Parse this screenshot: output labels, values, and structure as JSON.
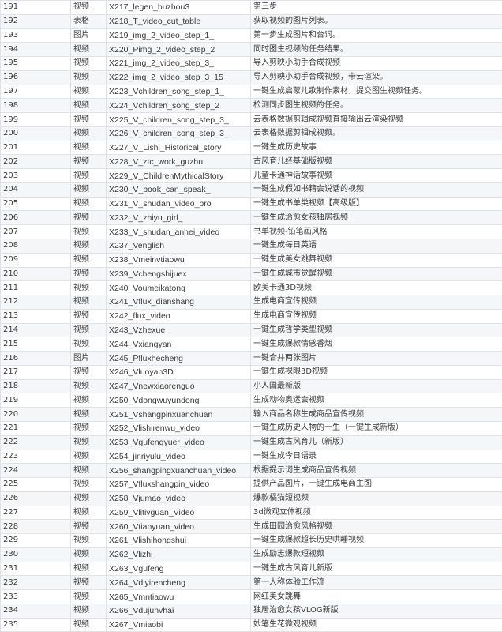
{
  "rows": [
    [
      "191",
      "视频",
      "X217_legen_buzhou3",
      "第三步"
    ],
    [
      "192",
      "表格",
      "X218_T_video_cut_table",
      "获取视频的图片列表。"
    ],
    [
      "193",
      "图片",
      "X219_img_2_video_step_1_",
      "第一步生成图片和台词。"
    ],
    [
      "194",
      "视频",
      "X220_Pimg_2_video_step_2",
      "同时图生视频的任务结果。"
    ],
    [
      "195",
      "视频",
      "X221_img_2_video_step_3_",
      "导入剪映小助手合成视频"
    ],
    [
      "196",
      "视频",
      "X222_img_2_video_step_3_15",
      "导入剪映小助手合成视频，带云渲染。"
    ],
    [
      "197",
      "视频",
      "X223_Vchildren_song_step_1_",
      "一键生成启蒙儿歌制作素材，提交图生视频任务。"
    ],
    [
      "198",
      "视频",
      "X224_Vchildren_song_step_2",
      "检测同步图生视频的任务。"
    ],
    [
      "199",
      "视频",
      "X225_V_children_song_step_3_",
      "云表格数据剪辑成视频直接输出云渲染视频"
    ],
    [
      "200",
      "视频",
      "X226_V_children_song_step_3_",
      "云表格数据剪辑成视频。"
    ],
    [
      "201",
      "视频",
      "X227_V_Lishi_Historical_story",
      "一键生成历史故事"
    ],
    [
      "202",
      "视频",
      "X228_V_ztc_work_guzhu",
      "古风育儿经基础版视频"
    ],
    [
      "203",
      "视频",
      "X229_V_ChildrenMythicalStory",
      "儿童卡通神话故事视频"
    ],
    [
      "204",
      "视频",
      "X230_V_book_can_speak_",
      "一键生成假如书籍会说话的视频"
    ],
    [
      "205",
      "视频",
      "X231_V_shudan_video_pro",
      "一键生成书单类视频【高级版】"
    ],
    [
      "206",
      "视频",
      "X232_V_zhiyu_girl_",
      "一键生成治愈女孩独居视频"
    ],
    [
      "207",
      "视频",
      "X233_V_shudan_anhei_video",
      "书单视频-铅笔画风格"
    ],
    [
      "208",
      "视频",
      "X237_Venglish",
      "一键生成每日英语"
    ],
    [
      "209",
      "视频",
      "X238_Vmeinvtiaowu",
      "一键生成美女跳舞视频"
    ],
    [
      "210",
      "视频",
      "X239_Vchengshijuex",
      "一键生成城市觉醒视频"
    ],
    [
      "211",
      "视频",
      "X240_Voumeikatong",
      "欧美卡通3D视频"
    ],
    [
      "212",
      "视频",
      "X241_Vflux_dianshang",
      "生成电商宣传视频"
    ],
    [
      "213",
      "视频",
      "X242_flux_video",
      "生成电商宣传视频"
    ],
    [
      "214",
      "视频",
      "X243_Vzhexue",
      "一键生成哲学类型视频"
    ],
    [
      "215",
      "视频",
      "X244_Vxiangyan",
      "一键生成爆款情感香烟"
    ],
    [
      "216",
      "图片",
      "X245_Pfluxhecheng",
      "一键合并两张图片"
    ],
    [
      "217",
      "视频",
      "X246_Vluoyan3D",
      "一键生成裸眼3D视频"
    ],
    [
      "218",
      "视频",
      "X247_Vnewxiaorenguo",
      "小人国最新版"
    ],
    [
      "219",
      "视频",
      "X250_Vdongwuyundong",
      "生成动物奥运会视频"
    ],
    [
      "220",
      "视频",
      "X251_Vshangpinxuanchuan",
      "输入商品名称生成商品宣传视频"
    ],
    [
      "221",
      "视频",
      "X252_Vlishirenwu_video",
      "一键生成历史人物的一生（一键生成新版）"
    ],
    [
      "222",
      "视频",
      "X253_Vgufengyuer_video",
      "一键生成古风育儿（新版）"
    ],
    [
      "223",
      "视频",
      "X254_jinriyulu_video",
      "一键生成今日语录"
    ],
    [
      "224",
      "视频",
      "X256_shangpingxuanchuan_video",
      "根据提示词生成商品宣传视频"
    ],
    [
      "225",
      "视频",
      "X257_Vfluxshangpin_video",
      "提供产品图片，一键生成电商主图"
    ],
    [
      "226",
      "视频",
      "X258_Vjumao_video",
      "爆款橘猫短视频"
    ],
    [
      "227",
      "视频",
      "X259_Vlitivguan_Video",
      "3d微观立体视频"
    ],
    [
      "228",
      "视频",
      "X260_Vtianyuan_video",
      "生成田园治愈风格视频"
    ],
    [
      "229",
      "视频",
      "X261_Vlishihongshui",
      "一键生成爆款超长历史哄睡视频"
    ],
    [
      "230",
      "视频",
      "X262_Vlizhi",
      "生成励志爆款短视频"
    ],
    [
      "231",
      "视频",
      "X263_Vgufeng",
      "一键生成古风育儿新版"
    ],
    [
      "232",
      "视频",
      "X264_Vdiyirencheng",
      "第一人称体验工作流"
    ],
    [
      "233",
      "视频",
      "X265_Vmntiaowu",
      "网红美女跳舞"
    ],
    [
      "234",
      "视频",
      "X266_Vdujunvhai",
      "独居治愈女孩VLOG新版"
    ],
    [
      "235",
      "视频",
      "X267_Vmiaobi",
      "妙笔生花微观视频"
    ]
  ]
}
